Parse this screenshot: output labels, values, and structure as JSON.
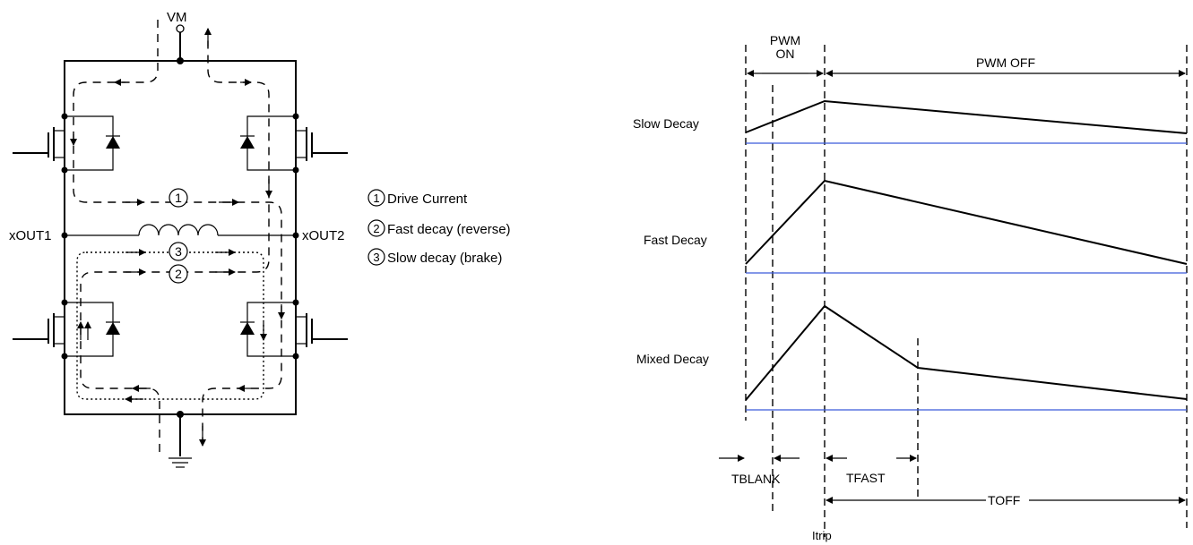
{
  "hbridge": {
    "supply_label": "VM",
    "out1_label": "xOUT1",
    "out2_label": "xOUT2",
    "path_numbers": [
      "1",
      "2",
      "3"
    ]
  },
  "legend": {
    "items": [
      {
        "num": "1",
        "label": "Drive Current"
      },
      {
        "num": "2",
        "label": "Fast decay (reverse)"
      },
      {
        "num": "3",
        "label": "Slow decay (brake)"
      }
    ]
  },
  "timing": {
    "pwm_on_line1": "PWM",
    "pwm_on_line2": "ON",
    "pwm_off": "PWM OFF",
    "rows": [
      {
        "label": "Slow Decay"
      },
      {
        "label": "Fast Decay"
      },
      {
        "label": "Mixed Decay"
      }
    ],
    "tblank": "TBLANK",
    "tfast": "TFAST",
    "toff": "TOFF",
    "itrip": "Itrip",
    "colors": {
      "threshold": "#3b5bdb",
      "trace": "#000000"
    }
  }
}
